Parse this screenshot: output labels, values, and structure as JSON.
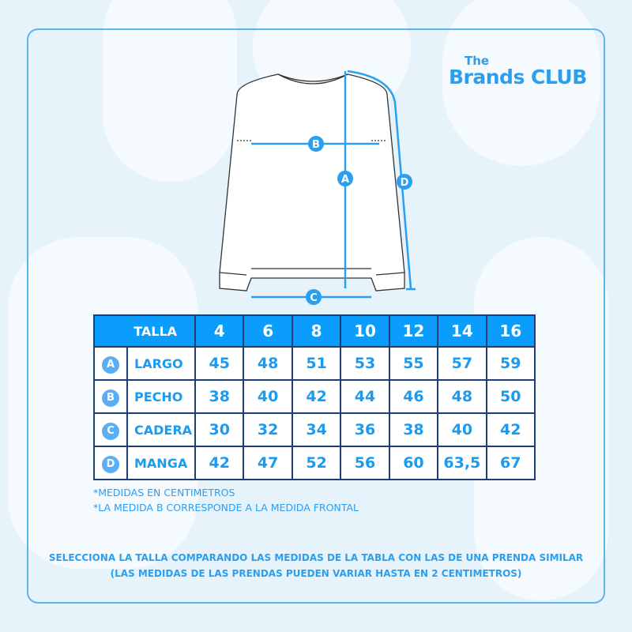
{
  "logo": {
    "the": "The",
    "main": "Brands CLUB"
  },
  "diagram_labels": {
    "a": "A",
    "b": "B",
    "c": "C",
    "d": "D"
  },
  "table": {
    "header_label": "TALLA",
    "sizes": [
      "4",
      "6",
      "8",
      "10",
      "12",
      "14",
      "16"
    ],
    "rows": [
      {
        "letter": "A",
        "label": "LARGO",
        "values": [
          "45",
          "48",
          "51",
          "53",
          "55",
          "57",
          "59"
        ]
      },
      {
        "letter": "B",
        "label": "PECHO",
        "values": [
          "38",
          "40",
          "42",
          "44",
          "46",
          "48",
          "50"
        ]
      },
      {
        "letter": "C",
        "label": "CADERA",
        "values": [
          "30",
          "32",
          "34",
          "36",
          "38",
          "40",
          "42"
        ]
      },
      {
        "letter": "D",
        "label": "MANGA",
        "values": [
          "42",
          "47",
          "52",
          "56",
          "60",
          "63,5",
          "67"
        ]
      }
    ]
  },
  "notes": [
    "*MEDIDAS EN CENTIMETROS",
    "*LA MEDIDA B CORRESPONDE A LA MEDIDA FRONTAL"
  ],
  "footer": [
    "SELECCIONA LA TALLA COMPARANDO LAS MEDIDAS DE LA TABLA CON LAS DE UNA PRENDA SIMILAR",
    "(LAS MEDIDAS DE LAS PRENDAS PUEDEN VARIAR HASTA EN 2 CENTIMETROS)"
  ],
  "colors": {
    "accent": "#0b9dfc",
    "text": "#1a9bf0",
    "border": "#1c3f75",
    "background": "#e6f3fb"
  }
}
